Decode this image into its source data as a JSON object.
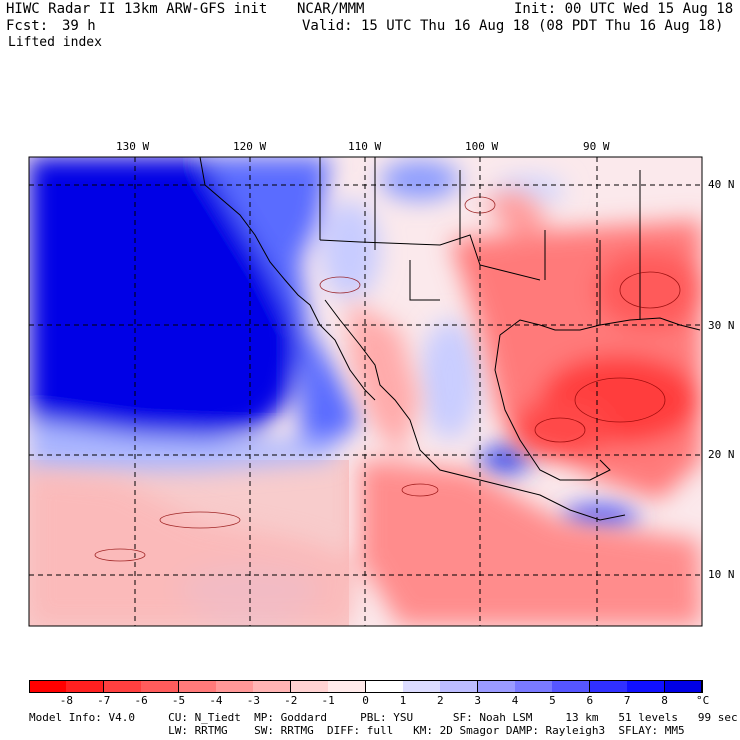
{
  "header": {
    "title": "HIWC Radar II 13km ARW-GFS init",
    "center": "NCAR/MMM",
    "init": "Init: 00 UTC Wed 15 Aug 18",
    "fcst_label": "Fcst:",
    "fcst_value": "39 h",
    "valid": "Valid: 15 UTC Thu 16 Aug 18 (08 PDT Thu 16 Aug 18)",
    "field": "Lifted index"
  },
  "map": {
    "lon_labels": [
      "130 W",
      "120 W",
      "110 W",
      "100 W",
      "90 W"
    ],
    "lat_labels": [
      "40 N",
      "30 N",
      "20 N",
      "10 N"
    ]
  },
  "colorbar": {
    "labels": [
      "-8",
      "-7",
      "-6",
      "-5",
      "-4",
      "-3",
      "-2",
      "-1",
      "0",
      "1",
      "2",
      "3",
      "4",
      "5",
      "6",
      "7",
      "8"
    ],
    "unit": "°C",
    "colors": [
      "#ff0000",
      "#ff2020",
      "#ff4040",
      "#ff5c5c",
      "#ff7a7a",
      "#ff9898",
      "#ffb4b4",
      "#ffd2d2",
      "#ffeaea",
      "#ffffff",
      "#dcdcff",
      "#bdbdff",
      "#9b9bff",
      "#7a7aff",
      "#5656ff",
      "#3030ff",
      "#1010ff",
      "#0000e6"
    ]
  },
  "footer": {
    "line1": "Model Info: V4.0     CU: N_Tiedt  MP: Goddard     PBL: YSU      SF: Noah LSM     13 km   51 levels   99 sec",
    "line2": "                     LW: RRTMG    SW: RRTMG  DIFF: full   KM: 2D Smagor DAMP: Rayleigh3  SFLAY: MM5"
  }
}
